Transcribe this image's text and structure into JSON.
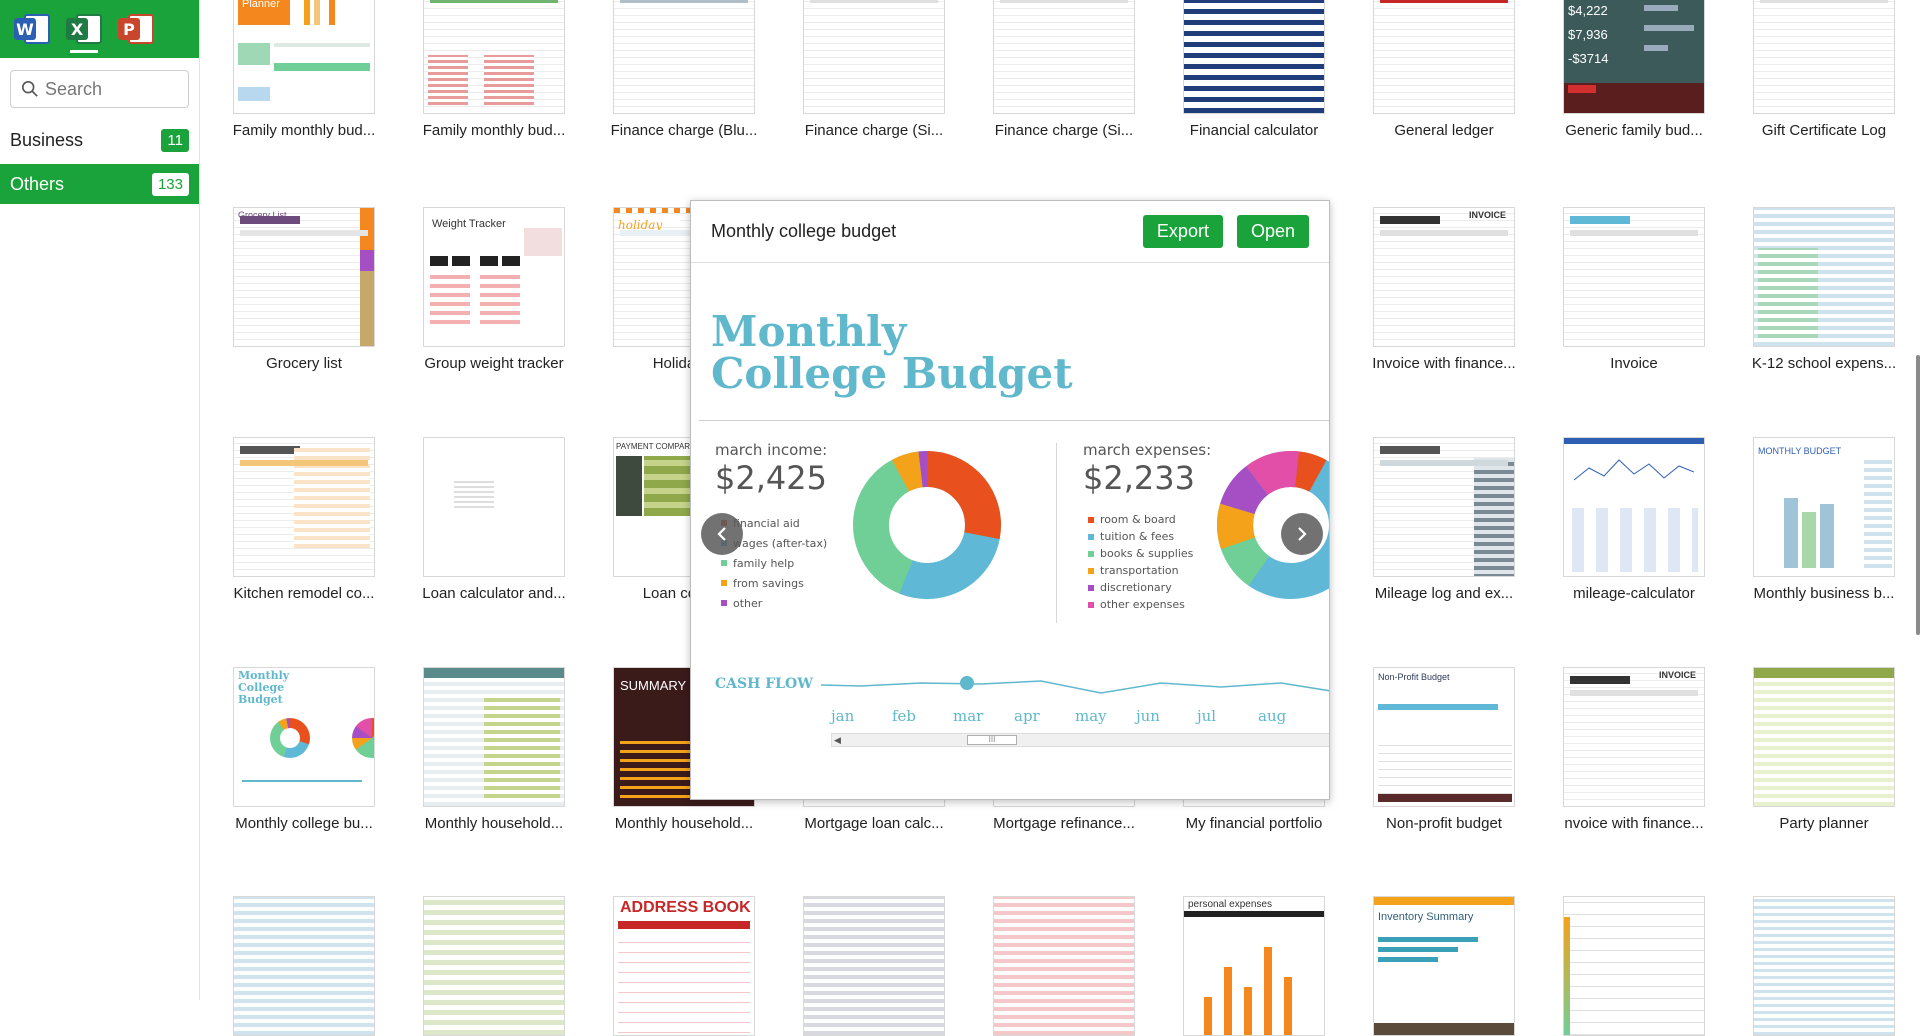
{
  "apps": [
    {
      "name": "word-app",
      "letter": "W"
    },
    {
      "name": "excel-app",
      "letter": "X"
    },
    {
      "name": "powerpoint-app",
      "letter": "P"
    }
  ],
  "search": {
    "placeholder": "Search"
  },
  "categories": [
    {
      "label": "Business",
      "count": "11"
    },
    {
      "label": "Others",
      "count": "133",
      "active": true
    }
  ],
  "templates": [
    {
      "label": "Family monthly bud..."
    },
    {
      "label": "Family monthly bud..."
    },
    {
      "label": "Finance charge (Blu..."
    },
    {
      "label": "Finance charge (Si..."
    },
    {
      "label": "Finance charge (Si..."
    },
    {
      "label": "Financial calculator"
    },
    {
      "label": "General ledger"
    },
    {
      "label": "Generic family bud..."
    },
    {
      "label": "Gift Certificate Log"
    },
    {
      "label": "Grocery list"
    },
    {
      "label": "Group weight tracker"
    },
    {
      "label": "Holiday g"
    },
    {
      "label": "Invoice with finance..."
    },
    {
      "label": "Invoice"
    },
    {
      "label": "K-12 school expens..."
    },
    {
      "label": "Kitchen remodel co..."
    },
    {
      "label": "Loan calculator and..."
    },
    {
      "label": "Loan compa"
    },
    {
      "label": "Mileage log and ex..."
    },
    {
      "label": "mileage-calculator"
    },
    {
      "label": "Monthly business b..."
    },
    {
      "label": "Monthly college bu..."
    },
    {
      "label": "Monthly household..."
    },
    {
      "label": "Monthly household..."
    },
    {
      "label": "Mortgage loan calc..."
    },
    {
      "label": "Mortgage refinance..."
    },
    {
      "label": "My financial portfolio"
    },
    {
      "label": "Non-profit budget"
    },
    {
      "label": "nvoice with finance..."
    },
    {
      "label": "Party planner"
    }
  ],
  "thumb_texts": {
    "budget_planner": "Budget Planner",
    "grocery": "Grocery List",
    "weight": "Weight Tracker",
    "holiday": "holiday",
    "invoice": "INVOICE",
    "payment": "PAYMENT COMPARISON",
    "summary": "SUMMARY",
    "monthly_budget": "MONTHLY BUDGET",
    "college": "Monthly College Budget",
    "nonprofit": "Non-Profit Budget",
    "address": "ADDRESS BOOK",
    "personal": "personal expenses",
    "inventory": "Inventory Summary",
    "generic_amt1": "$4,222",
    "generic_amt2": "$7,936",
    "generic_amt3": "-$3714"
  },
  "preview": {
    "title": "Monthly college budget",
    "export_label": "Export",
    "open_label": "Open",
    "heading_line1": "Monthly",
    "heading_line2": "College Budget",
    "income_label": "march income:",
    "income_amount": "$2,425",
    "income_legend": [
      {
        "label": "financial aid",
        "color": "#e8501e"
      },
      {
        "label": "wages (after-tax)",
        "color": "#5fb8d6"
      },
      {
        "label": "family help",
        "color": "#6fcf97"
      },
      {
        "label": "from savings",
        "color": "#f4a21a"
      },
      {
        "label": "other",
        "color": "#a64fc4"
      }
    ],
    "expense_label": "march expenses:",
    "expense_amount": "$2,233",
    "expense_legend": [
      {
        "label": "room & board",
        "color": "#e8501e"
      },
      {
        "label": "tuition & fees",
        "color": "#5fb8d6"
      },
      {
        "label": "books & supplies",
        "color": "#6fcf97"
      },
      {
        "label": "transportation",
        "color": "#f4a21a"
      },
      {
        "label": "discretionary",
        "color": "#a64fc4"
      },
      {
        "label": "other expenses",
        "color": "#e24fa8"
      }
    ],
    "cashflow_label": "CASH FLOW",
    "months": [
      "jan",
      "feb",
      "mar",
      "apr",
      "may",
      "jun",
      "jul",
      "aug"
    ],
    "scroll_grip": "III"
  },
  "colors": {
    "accent": "#1aa33a",
    "teal": "#5fb8cc"
  }
}
